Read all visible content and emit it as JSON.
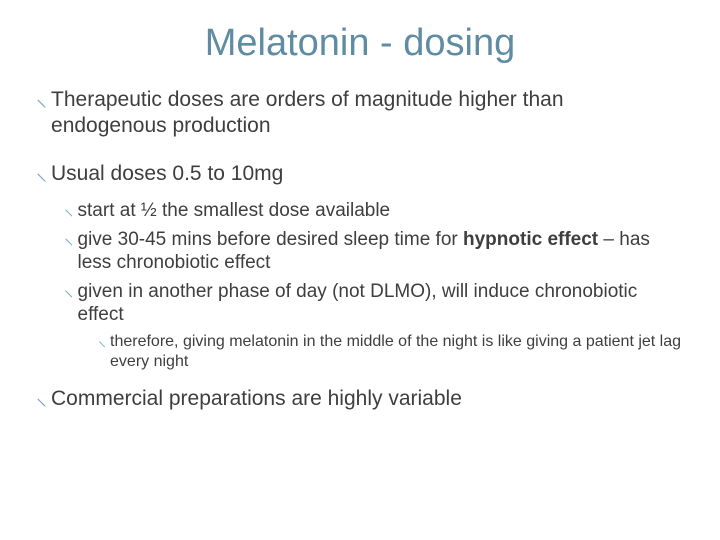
{
  "slide": {
    "title": "Melatonin - dosing",
    "title_color": "#5f8ca3",
    "title_fontsize": 38,
    "background_color": "#ffffff",
    "text_color": "#3e3e3e",
    "bullet_glyph": "⸜",
    "bullet_glyph_color": "#7aa9bf",
    "body_fontsize_l1": 21,
    "body_fontsize_l2": 19,
    "body_fontsize_l3": 16,
    "b1_text": "Therapeutic doses are orders of magnitude higher than endogenous production",
    "b2_text": "Usual doses 0.5 to 10mg",
    "b2_1_text": "start at ½ the smallest dose available",
    "b2_2_pre": "give 30-45 mins before desired sleep time for ",
    "b2_2_bold": "hypnotic effect",
    "b2_2_post": " – has less chronobiotic effect",
    "b2_3_text": "given in another phase of day (not DLMO), will induce chronobiotic effect",
    "b2_3_1_text": "therefore, giving melatonin in the middle of the night is like giving a patient jet lag every night",
    "b3_text": "Commercial preparations are highly variable"
  }
}
